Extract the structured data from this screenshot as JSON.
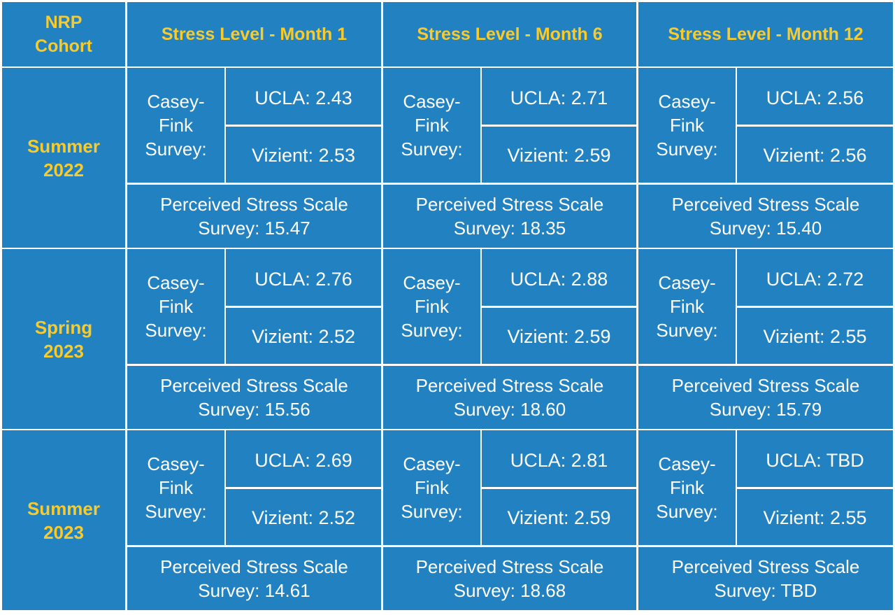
{
  "colors": {
    "cell_bg": "#2282c1",
    "border": "#ffffff",
    "header_text": "#f7cb2e",
    "body_text": "#ffffff"
  },
  "header": {
    "cohort_label": [
      "NRP",
      "Cohort"
    ],
    "months": [
      "Stress Level - Month 1",
      "Stress Level - Month 6",
      "Stress Level - Month 12"
    ]
  },
  "labels": {
    "casey_fink": [
      "Casey-",
      "Fink",
      "Survey:"
    ],
    "pss_prefix": "Perceived Stress Scale"
  },
  "rows": [
    {
      "cohort": [
        "Summer",
        "2022"
      ],
      "months": [
        {
          "ucla": "UCLA: 2.43",
          "vizient": "Vizient: 2.53",
          "pss": "Survey: 15.47"
        },
        {
          "ucla": "UCLA: 2.71",
          "vizient": "Vizient: 2.59",
          "pss": "Survey: 18.35"
        },
        {
          "ucla": "UCLA: 2.56",
          "vizient": "Vizient: 2.56",
          "pss": "Survey: 15.40"
        }
      ]
    },
    {
      "cohort": [
        "Spring",
        "2023"
      ],
      "months": [
        {
          "ucla": "UCLA: 2.76",
          "vizient": "Vizient: 2.52",
          "pss": "Survey: 15.56"
        },
        {
          "ucla": "UCLA: 2.88",
          "vizient": "Vizient: 2.59",
          "pss": "Survey: 18.60"
        },
        {
          "ucla": "UCLA: 2.72",
          "vizient": "Vizient: 2.55",
          "pss": "Survey: 15.79"
        }
      ]
    },
    {
      "cohort": [
        "Summer",
        "2023"
      ],
      "months": [
        {
          "ucla": "UCLA: 2.69",
          "vizient": "Vizient: 2.52",
          "pss": "Survey: 14.61"
        },
        {
          "ucla": "UCLA: 2.81",
          "vizient": "Vizient: 2.59",
          "pss": "Survey: 18.68"
        },
        {
          "ucla": "UCLA: TBD",
          "vizient": "Vizient: 2.55",
          "pss": "Survey: TBD"
        }
      ]
    }
  ]
}
